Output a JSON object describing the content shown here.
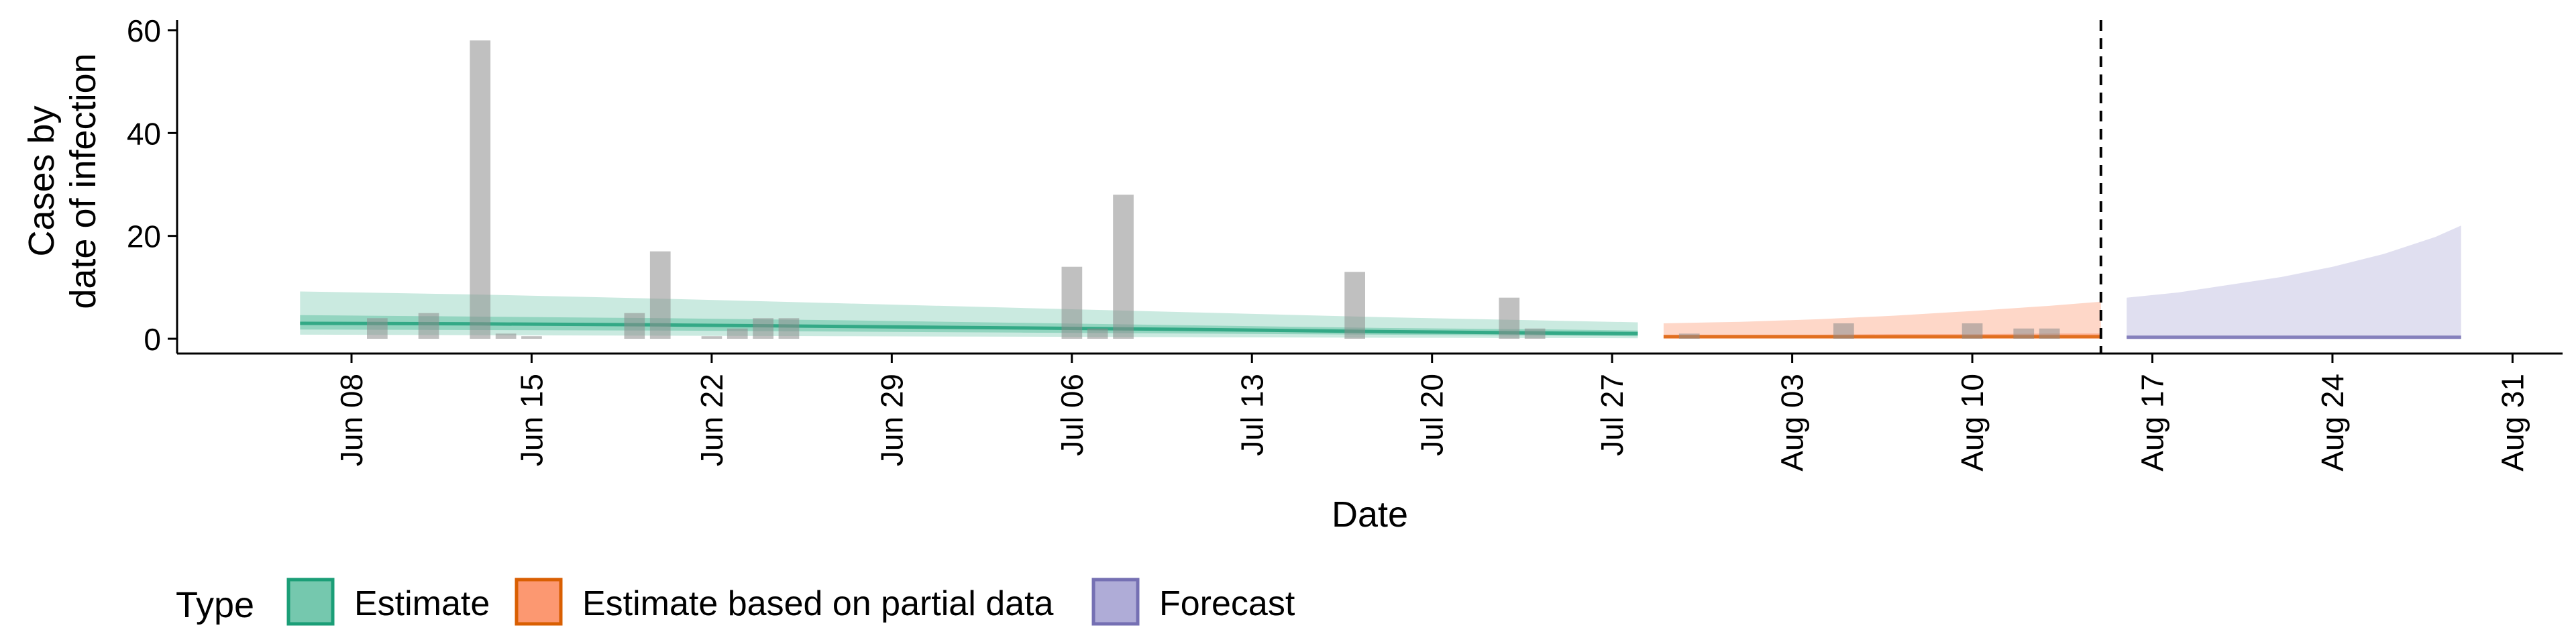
{
  "chart_data": {
    "type": "bar",
    "title": "",
    "xlabel": "Date",
    "ylabel_lines": [
      "Cases by",
      "date of infection"
    ],
    "ylim": [
      0,
      60
    ],
    "yticks": [
      0,
      20,
      40,
      60
    ],
    "x_range": [
      "2020-06-01",
      "2020-09-01"
    ],
    "xticks": [
      {
        "date": "2020-06-08",
        "label": "Jun 08"
      },
      {
        "date": "2020-06-15",
        "label": "Jun 15"
      },
      {
        "date": "2020-06-22",
        "label": "Jun 22"
      },
      {
        "date": "2020-06-29",
        "label": "Jun 29"
      },
      {
        "date": "2020-07-06",
        "label": "Jul 06"
      },
      {
        "date": "2020-07-13",
        "label": "Jul 13"
      },
      {
        "date": "2020-07-20",
        "label": "Jul 20"
      },
      {
        "date": "2020-07-27",
        "label": "Jul 27"
      },
      {
        "date": "2020-08-03",
        "label": "Aug 03"
      },
      {
        "date": "2020-08-10",
        "label": "Aug 10"
      },
      {
        "date": "2020-08-17",
        "label": "Aug 17"
      },
      {
        "date": "2020-08-24",
        "label": "Aug 24"
      },
      {
        "date": "2020-08-31",
        "label": "Aug 31"
      }
    ],
    "forecast_cutoff": "2020-08-15",
    "grid": false,
    "legend": {
      "title": "Type",
      "position": "bottom",
      "entries": [
        {
          "label": "Estimate",
          "fill": "#66c2a5",
          "stroke": "#1b9e77"
        },
        {
          "label": "Estimate based on partial data",
          "fill": "#fc8d62",
          "stroke": "#d95f02"
        },
        {
          "label": "Forecast",
          "fill": "#a6a3d3",
          "stroke": "#7570b3"
        }
      ]
    },
    "reported_cases": [
      {
        "date": "2020-06-09",
        "value": 4
      },
      {
        "date": "2020-06-11",
        "value": 5
      },
      {
        "date": "2020-06-13",
        "value": 58
      },
      {
        "date": "2020-06-14",
        "value": 1
      },
      {
        "date": "2020-06-15",
        "value": 0.5
      },
      {
        "date": "2020-06-19",
        "value": 5
      },
      {
        "date": "2020-06-20",
        "value": 17
      },
      {
        "date": "2020-06-22",
        "value": 0.5
      },
      {
        "date": "2020-06-23",
        "value": 2
      },
      {
        "date": "2020-06-24",
        "value": 4
      },
      {
        "date": "2020-06-25",
        "value": 4
      },
      {
        "date": "2020-07-06",
        "value": 14
      },
      {
        "date": "2020-07-07",
        "value": 2
      },
      {
        "date": "2020-07-08",
        "value": 28
      },
      {
        "date": "2020-07-17",
        "value": 13
      },
      {
        "date": "2020-07-23",
        "value": 8
      },
      {
        "date": "2020-07-24",
        "value": 2
      },
      {
        "date": "2020-07-30",
        "value": 1
      },
      {
        "date": "2020-08-05",
        "value": 3
      },
      {
        "date": "2020-08-10",
        "value": 3
      },
      {
        "date": "2020-08-12",
        "value": 2
      },
      {
        "date": "2020-08-13",
        "value": 2
      }
    ],
    "series": [
      {
        "name": "Estimate",
        "x": [
          "2020-06-06",
          "2020-06-13",
          "2020-06-20",
          "2020-06-27",
          "2020-07-04",
          "2020-07-11",
          "2020-07-18",
          "2020-07-25",
          "2020-07-28"
        ],
        "upper90": [
          9.2,
          8.6,
          7.8,
          6.9,
          6.0,
          5.1,
          4.2,
          3.5,
          3.2
        ],
        "upper50": [
          4.6,
          4.3,
          4.0,
          3.6,
          3.1,
          2.6,
          2.1,
          1.8,
          1.6
        ],
        "median": [
          3.0,
          2.9,
          2.7,
          2.4,
          2.1,
          1.8,
          1.4,
          1.1,
          1.0
        ],
        "lower50": [
          1.8,
          1.7,
          1.6,
          1.4,
          1.2,
          1.0,
          0.8,
          0.6,
          0.5
        ],
        "lower90": [
          0.8,
          0.7,
          0.6,
          0.5,
          0.4,
          0.3,
          0.2,
          0.15,
          0.1
        ]
      },
      {
        "name": "Estimate based on partial data",
        "x": [
          "2020-07-29",
          "2020-08-01",
          "2020-08-04",
          "2020-08-07",
          "2020-08-10",
          "2020-08-13",
          "2020-08-15"
        ],
        "upper90": [
          3.0,
          3.3,
          3.8,
          4.5,
          5.4,
          6.4,
          7.2
        ],
        "upper50": [
          0.8,
          0.8,
          0.8,
          0.9,
          0.9,
          1.0,
          1.0
        ],
        "median": [
          0.4,
          0.4,
          0.4,
          0.4,
          0.4,
          0.4,
          0.4
        ],
        "lower50": [
          0.1,
          0.1,
          0.1,
          0.1,
          0.1,
          0.1,
          0.1
        ],
        "lower90": [
          0.0,
          0.0,
          0.0,
          0.0,
          0.0,
          0.0,
          0.0
        ]
      },
      {
        "name": "Forecast",
        "x": [
          "2020-08-16",
          "2020-08-18",
          "2020-08-20",
          "2020-08-22",
          "2020-08-24",
          "2020-08-26",
          "2020-08-28",
          "2020-08-29"
        ],
        "upper90": [
          8.0,
          9.0,
          10.5,
          12.0,
          14.0,
          16.5,
          19.8,
          22.0
        ],
        "upper50": [
          0.6,
          0.6,
          0.6,
          0.6,
          0.6,
          0.6,
          0.6,
          0.6
        ],
        "median": [
          0.3,
          0.3,
          0.3,
          0.3,
          0.3,
          0.3,
          0.3,
          0.3
        ],
        "lower50": [
          0.05,
          0.05,
          0.05,
          0.05,
          0.05,
          0.05,
          0.05,
          0.05
        ],
        "lower90": [
          0.0,
          0.0,
          0.0,
          0.0,
          0.0,
          0.0,
          0.0,
          0.0
        ]
      }
    ]
  }
}
